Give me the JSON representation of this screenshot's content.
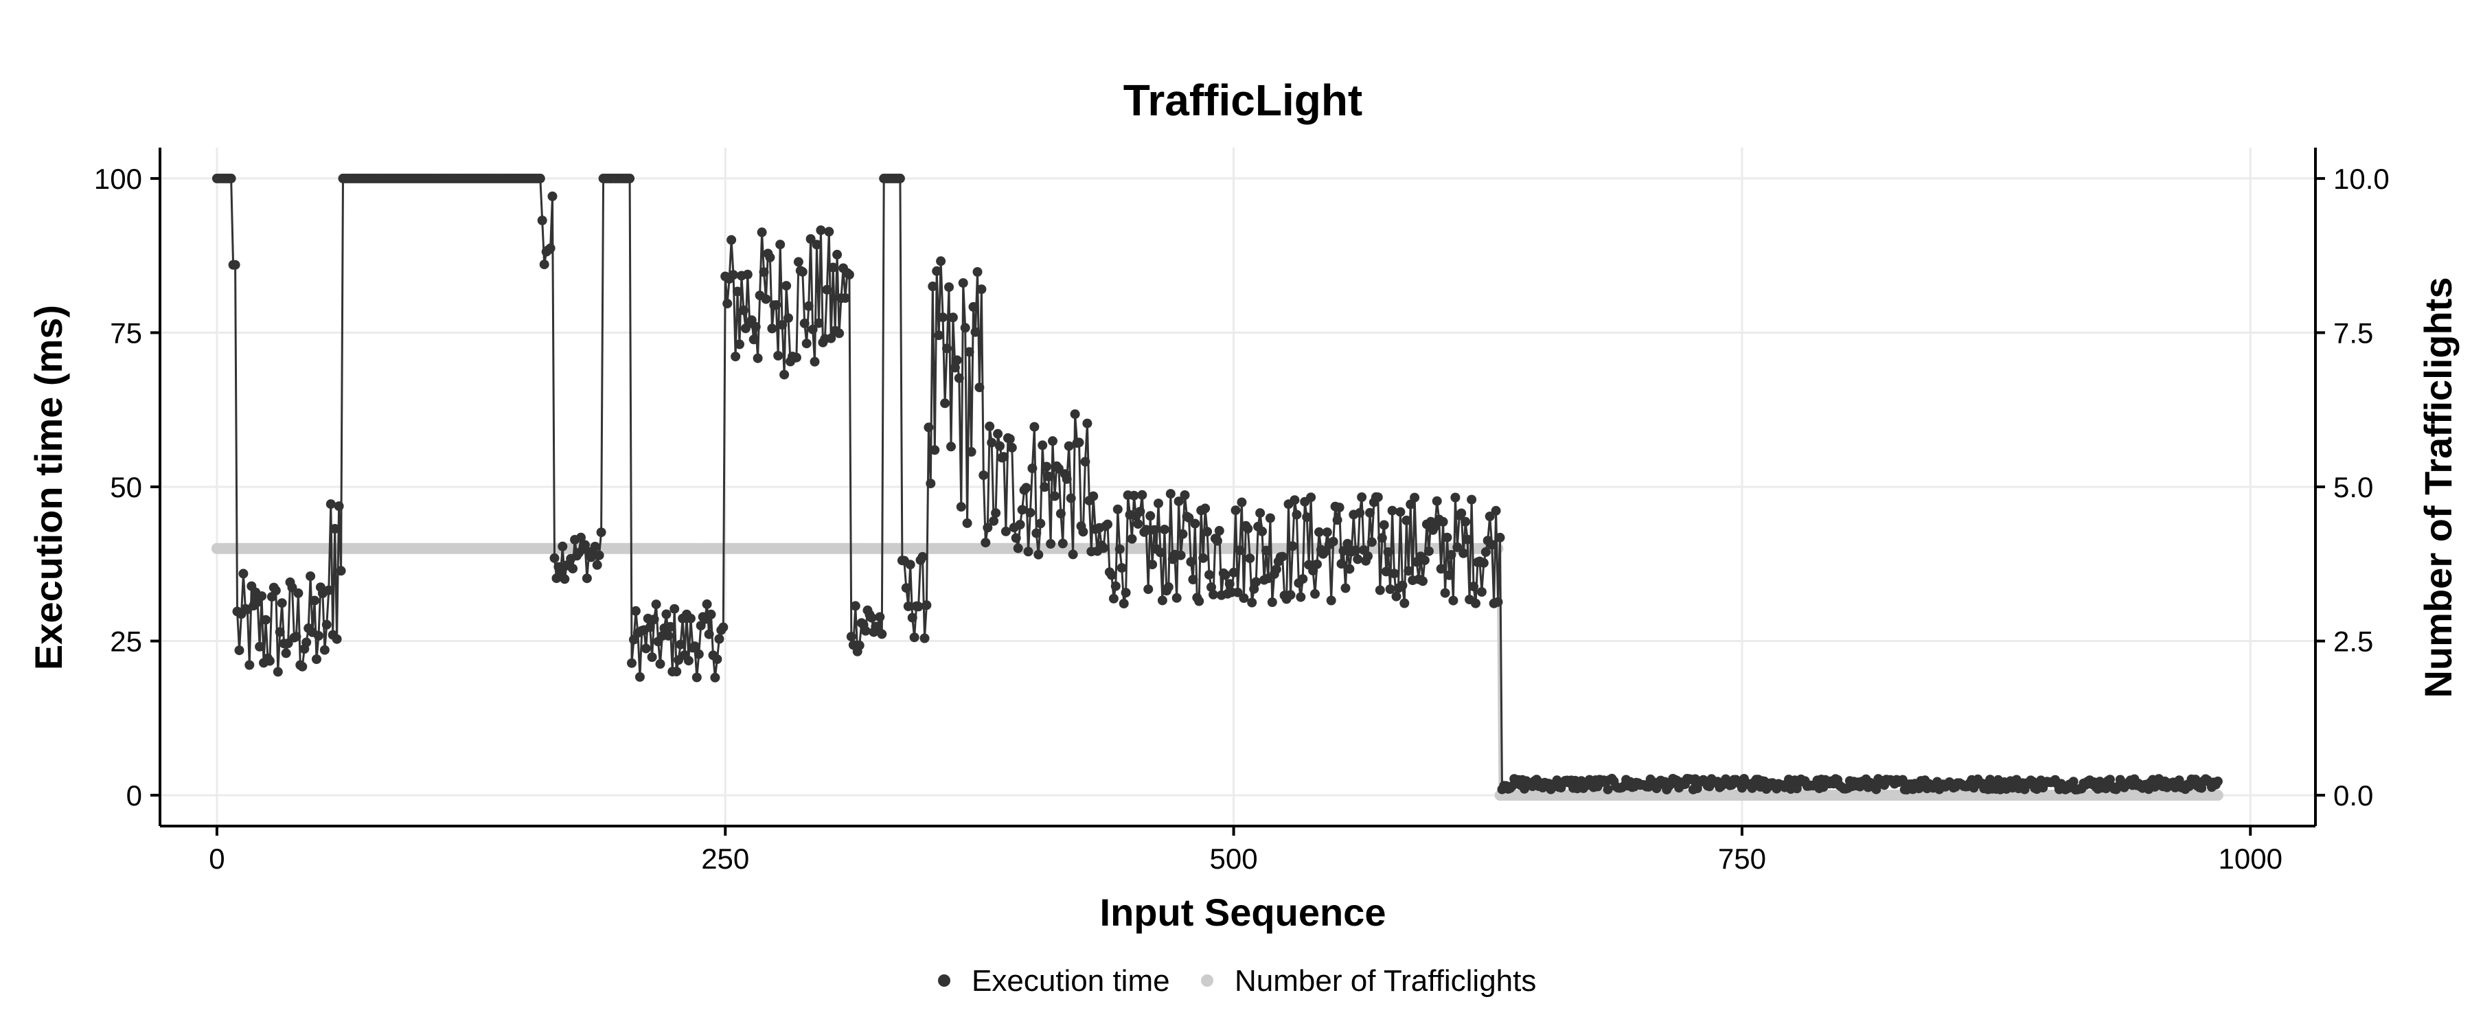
{
  "chart_data": {
    "type": "line",
    "title": "TrafficLight",
    "xlabel": "Input Sequence",
    "ylabel": "Execution time (ms)",
    "y2label": "Number of Trafficlights",
    "xlim": [
      -28,
      1032
    ],
    "ylim": [
      -5,
      105
    ],
    "y2lim": [
      -0.5,
      10.5
    ],
    "x_ticks": [
      0,
      250,
      500,
      750,
      1000
    ],
    "x_tick_labels": [
      "0",
      "250",
      "500",
      "750",
      "1000"
    ],
    "y_ticks": [
      0,
      25,
      50,
      75,
      100
    ],
    "y_tick_labels": [
      "0",
      "25",
      "50",
      "75",
      "100"
    ],
    "y2_ticks": [
      0,
      2.5,
      5,
      7.5,
      10
    ],
    "y2_tick_labels": [
      "0.0",
      "2.5",
      "5.0",
      "7.5",
      "10.0"
    ],
    "grid": true,
    "legend_position": "bottom",
    "colors": {
      "execution": "#333333",
      "trafficlights": "#cccccc"
    },
    "series": [
      {
        "name": "Execution time",
        "axis": "left",
        "segments": [
          {
            "x": [
              0,
              8
            ],
            "level": 100,
            "spread": 0
          },
          {
            "x": [
              8,
              10
            ],
            "level": 86,
            "spread": 0
          },
          {
            "x": [
              10,
              56
            ],
            "level": 27,
            "spread": 9
          },
          {
            "x": [
              56,
              62
            ],
            "level": 40,
            "spread": 18
          },
          {
            "x": [
              62,
              160
            ],
            "level": 100,
            "spread": 0
          },
          {
            "x": [
              160,
              166
            ],
            "level": 90,
            "spread": 8
          },
          {
            "x": [
              166,
              190
            ],
            "level": 39,
            "spread": 4
          },
          {
            "x": [
              190,
              204
            ],
            "level": 100,
            "spread": 0
          },
          {
            "x": [
              204,
              250
            ],
            "level": 25,
            "spread": 6
          },
          {
            "x": [
              250,
              312
            ],
            "level": 80,
            "spread": 12
          },
          {
            "x": [
              312,
              328
            ],
            "level": 28,
            "spread": 5
          },
          {
            "x": [
              328,
              337
            ],
            "level": 100,
            "spread": 0
          },
          {
            "x": [
              337,
              350
            ],
            "level": 32,
            "spread": 7
          },
          {
            "x": [
              350,
              378
            ],
            "level": 65,
            "spread": 22
          },
          {
            "x": [
              378,
              430
            ],
            "level": 50,
            "spread": 12
          },
          {
            "x": [
              430,
              632
            ],
            "level": 40,
            "spread": 9
          },
          {
            "x": [
              632,
              985
            ],
            "level": 1.8,
            "spread": 0.9
          }
        ]
      },
      {
        "name": "Number of Trafficlights",
        "axis": "right",
        "segments": [
          {
            "x": [
              0,
              631
            ],
            "level": 4,
            "spread": 0
          },
          {
            "x": [
              631,
              985
            ],
            "level": 0,
            "spread": 0
          }
        ]
      }
    ]
  }
}
